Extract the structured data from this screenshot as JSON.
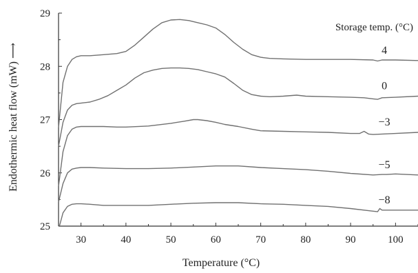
{
  "chart_data": {
    "type": "line",
    "title": "",
    "xlabel": "Temperature (°C)",
    "ylabel": "Endothermic heat flow (mW) ⟶",
    "xlim": [
      25,
      105
    ],
    "ylim": [
      25,
      29
    ],
    "xticks": [
      30,
      40,
      50,
      60,
      70,
      80,
      90,
      100
    ],
    "yticks": [
      25,
      26,
      27,
      28,
      29
    ],
    "grid": false,
    "legend_title": "Storage temp. (°C)",
    "line_color": "#707070",
    "series": [
      {
        "name": "4",
        "x": [
          25,
          26,
          27,
          28,
          29,
          30,
          32,
          35,
          38,
          40,
          42,
          44,
          46,
          48,
          50,
          52,
          54,
          56,
          58,
          60,
          62,
          64,
          66,
          68,
          70,
          72,
          75,
          80,
          85,
          90,
          95,
          96,
          97,
          100,
          105
        ],
        "y": [
          26.85,
          27.7,
          28.0,
          28.13,
          28.18,
          28.2,
          28.2,
          28.22,
          28.24,
          28.28,
          28.4,
          28.55,
          28.7,
          28.82,
          28.87,
          28.88,
          28.86,
          28.82,
          28.78,
          28.72,
          28.6,
          28.45,
          28.32,
          28.22,
          28.17,
          28.15,
          28.14,
          28.13,
          28.13,
          28.13,
          28.12,
          28.1,
          28.12,
          28.12,
          28.11
        ]
      },
      {
        "name": "0",
        "x": [
          25,
          26,
          27,
          28,
          29,
          30,
          32,
          34,
          36,
          38,
          40,
          42,
          44,
          46,
          48,
          50,
          52,
          54,
          56,
          58,
          60,
          62,
          64,
          66,
          68,
          70,
          72,
          75,
          78,
          80,
          85,
          90,
          93,
          95,
          96,
          97,
          100,
          105
        ],
        "y": [
          26.5,
          26.95,
          27.18,
          27.27,
          27.3,
          27.31,
          27.33,
          27.38,
          27.45,
          27.55,
          27.65,
          27.78,
          27.88,
          27.93,
          27.96,
          27.97,
          27.97,
          27.96,
          27.94,
          27.9,
          27.86,
          27.8,
          27.68,
          27.55,
          27.47,
          27.44,
          27.43,
          27.44,
          27.46,
          27.44,
          27.43,
          27.42,
          27.41,
          27.39,
          27.38,
          27.41,
          27.42,
          27.44
        ]
      },
      {
        "name": "−3",
        "x": [
          25,
          26,
          27,
          28,
          29,
          30,
          32,
          35,
          38,
          40,
          45,
          50,
          53,
          55,
          56,
          58,
          60,
          62,
          65,
          68,
          70,
          75,
          80,
          85,
          90,
          92,
          93,
          94,
          95,
          100,
          105
        ],
        "y": [
          25.75,
          26.4,
          26.7,
          26.82,
          26.86,
          26.87,
          26.87,
          26.87,
          26.86,
          26.86,
          26.88,
          26.93,
          26.97,
          27.0,
          27.0,
          26.98,
          26.95,
          26.91,
          26.87,
          26.82,
          26.79,
          26.78,
          26.77,
          26.76,
          26.74,
          26.74,
          26.78,
          26.73,
          26.72,
          26.74,
          26.76
        ]
      },
      {
        "name": "−5",
        "x": [
          25,
          26,
          27,
          28,
          29,
          30,
          32,
          35,
          40,
          45,
          50,
          55,
          60,
          65,
          70,
          75,
          80,
          85,
          90,
          95,
          97,
          98,
          100,
          105
        ],
        "y": [
          25.45,
          25.8,
          26.0,
          26.07,
          26.09,
          26.1,
          26.1,
          26.09,
          26.08,
          26.08,
          26.09,
          26.11,
          26.13,
          26.13,
          26.1,
          26.08,
          26.06,
          26.03,
          25.99,
          25.96,
          25.97,
          25.97,
          25.98,
          25.96
        ]
      },
      {
        "name": "−8",
        "x": [
          25.2,
          26,
          27,
          28,
          29,
          30,
          32,
          35,
          40,
          45,
          50,
          55,
          60,
          65,
          70,
          75,
          80,
          85,
          90,
          94,
          96,
          96.5,
          97,
          100,
          105
        ],
        "y": [
          25.0,
          25.25,
          25.37,
          25.41,
          25.42,
          25.42,
          25.41,
          25.39,
          25.39,
          25.39,
          25.41,
          25.43,
          25.44,
          25.44,
          25.42,
          25.41,
          25.39,
          25.37,
          25.33,
          25.29,
          25.27,
          25.33,
          25.3,
          25.3,
          25.3
        ]
      }
    ]
  }
}
